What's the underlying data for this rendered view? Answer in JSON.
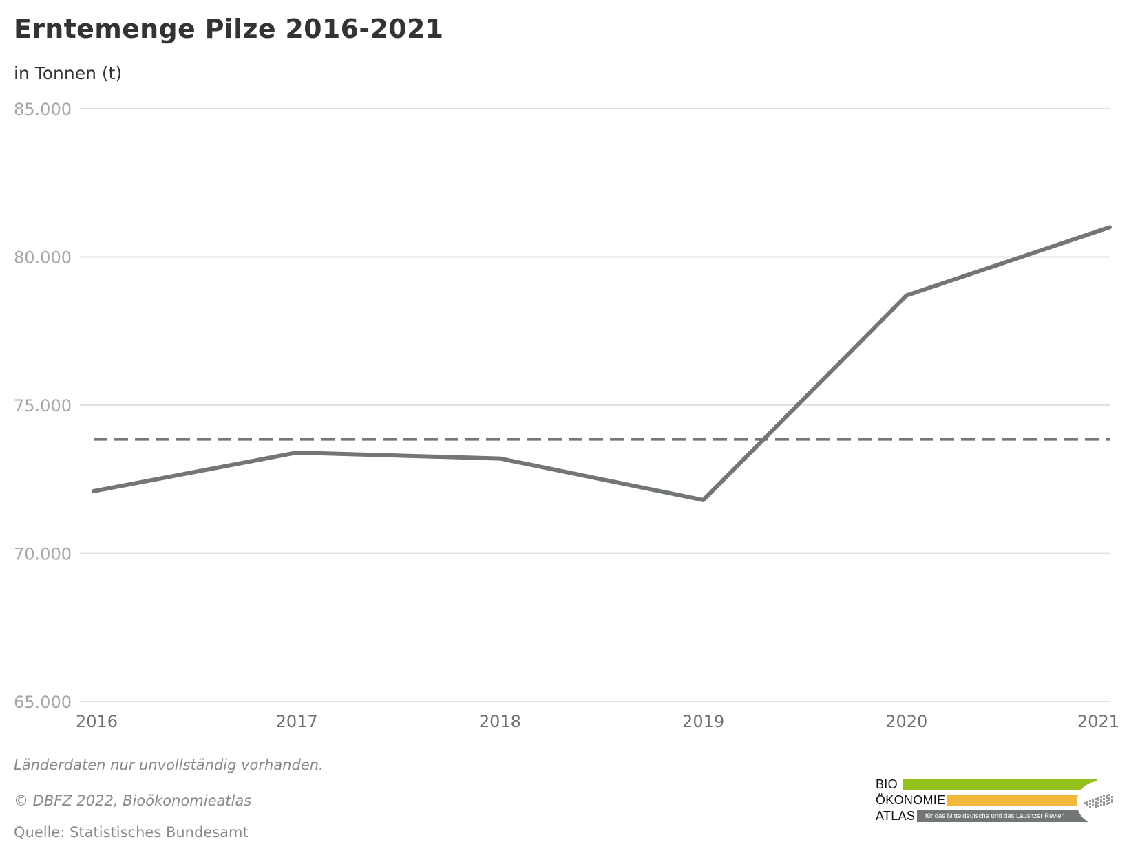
{
  "chart_data": {
    "type": "line",
    "title": "Erntemenge Pilze 2016-2021",
    "subtitle": "in Tonnen (t)",
    "xlabel": "",
    "ylabel": "",
    "categories": [
      "2016",
      "2017",
      "2018",
      "2019",
      "2020",
      "2021"
    ],
    "series": [
      {
        "values": [
          72100,
          73400,
          73200,
          71800,
          78700,
          81000
        ],
        "color": "#727677"
      }
    ],
    "reference_line": {
      "value": 73850,
      "style": "dashed",
      "color": "#727677"
    },
    "ylim": [
      65000,
      85000
    ],
    "yticks": [
      85000,
      80000,
      75000,
      70000,
      65000
    ],
    "ytick_labels": [
      "85.000",
      "80.000",
      "75.000",
      "70.000",
      "65.000"
    ],
    "grid": true,
    "legend": "none"
  },
  "footnotes": {
    "note": "Länderdaten nur unvollständig vorhanden.",
    "copyright": "© DBFZ 2022, Bioökonomieatlas",
    "source": "Quelle: Statistisches Bundesamt"
  },
  "logo": {
    "line1": "BIO",
    "line2": "ÖKONOMIE",
    "line3": "ATLAS",
    "tagline": "für das Mitteldeutsche und das Lausitzer Revier",
    "colors": {
      "green": "#95c11f",
      "yellow": "#f0b93b",
      "gray": "#727677"
    }
  }
}
